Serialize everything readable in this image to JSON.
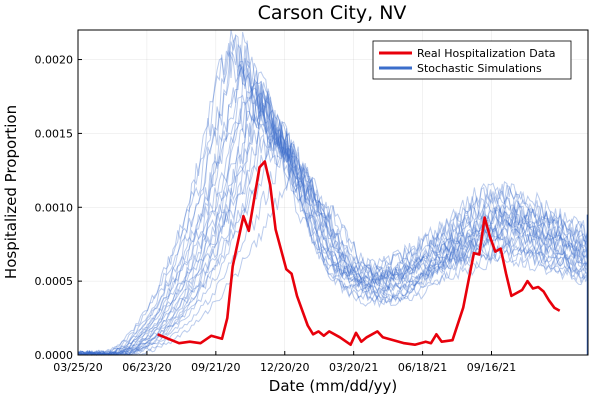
{
  "chart_data": {
    "type": "line",
    "title": "Carson City, NV",
    "xlabel": "Date (mm/dd/yy)",
    "ylabel": "Hospitalized Proportion",
    "x_axis": {
      "unit": "date",
      "range": [
        "03/25/20",
        "01/20/22"
      ],
      "ticks": [
        {
          "date": "03/25/20",
          "label": "03/25/20"
        },
        {
          "date": "06/23/20",
          "label": "06/23/20"
        },
        {
          "date": "09/21/20",
          "label": "09/21/20"
        },
        {
          "date": "12/20/20",
          "label": "12/20/20"
        },
        {
          "date": "03/20/21",
          "label": "03/20/21"
        },
        {
          "date": "06/18/21",
          "label": "06/18/21"
        },
        {
          "date": "09/16/21",
          "label": "09/16/21"
        }
      ]
    },
    "y_axis": {
      "range": [
        0,
        0.0022
      ],
      "ticks": [
        {
          "value": 0,
          "label": "0.0000"
        },
        {
          "value": 0.0005,
          "label": "0.0005"
        },
        {
          "value": 0.001,
          "label": "0.0010"
        },
        {
          "value": 0.0015,
          "label": "0.0015"
        },
        {
          "value": 0.002,
          "label": "0.0020"
        }
      ]
    },
    "grid": true,
    "legend": {
      "placement": "top-right",
      "entries": [
        {
          "label": "Real Hospitalization Data",
          "color": "#e8000b"
        },
        {
          "label": "Stochastic Simulations",
          "color": "#3b6ecb"
        }
      ]
    },
    "series": [
      {
        "name": "Real Hospitalization Data",
        "color": "#e8000b",
        "points": [
          [
            "07/07/20",
            0.00014
          ],
          [
            "07/21/20",
            0.00011
          ],
          [
            "08/04/20",
            8e-05
          ],
          [
            "08/18/20",
            9e-05
          ],
          [
            "09/01/20",
            8e-05
          ],
          [
            "09/15/20",
            0.00013
          ],
          [
            "09/29/20",
            0.00011
          ],
          [
            "10/06/20",
            0.00025
          ],
          [
            "10/13/20",
            0.0006
          ],
          [
            "10/27/20",
            0.00094
          ],
          [
            "11/03/20",
            0.00084
          ],
          [
            "11/17/20",
            0.00127
          ],
          [
            "11/24/20",
            0.00131
          ],
          [
            "12/01/20",
            0.00115
          ],
          [
            "12/08/20",
            0.00085
          ],
          [
            "12/22/20",
            0.00058
          ],
          [
            "12/29/20",
            0.00055
          ],
          [
            "01/05/21",
            0.0004
          ],
          [
            "01/19/21",
            0.0002
          ],
          [
            "01/26/21",
            0.00014
          ],
          [
            "02/02/21",
            0.00016
          ],
          [
            "02/09/21",
            0.00013
          ],
          [
            "02/16/21",
            0.00016
          ],
          [
            "03/02/21",
            0.00012
          ],
          [
            "03/16/21",
            7e-05
          ],
          [
            "03/23/21",
            0.00015
          ],
          [
            "03/30/21",
            9e-05
          ],
          [
            "04/06/21",
            0.00012
          ],
          [
            "04/20/21",
            0.00016
          ],
          [
            "04/27/21",
            0.00012
          ],
          [
            "05/11/21",
            0.0001
          ],
          [
            "05/25/21",
            8e-05
          ],
          [
            "06/08/21",
            7e-05
          ],
          [
            "06/22/21",
            9e-05
          ],
          [
            "06/29/21",
            8e-05
          ],
          [
            "07/06/21",
            0.00014
          ],
          [
            "07/13/21",
            9e-05
          ],
          [
            "07/27/21",
            0.0001
          ],
          [
            "08/10/21",
            0.00032
          ],
          [
            "08/24/21",
            0.00069
          ],
          [
            "08/31/21",
            0.00068
          ],
          [
            "09/07/21",
            0.00093
          ],
          [
            "09/14/21",
            0.0008
          ],
          [
            "09/21/21",
            0.0007
          ],
          [
            "09/28/21",
            0.00072
          ],
          [
            "10/05/21",
            0.00055
          ],
          [
            "10/12/21",
            0.0004
          ],
          [
            "10/26/21",
            0.00044
          ],
          [
            "11/02/21",
            0.0005
          ],
          [
            "11/09/21",
            0.00045
          ],
          [
            "11/16/21",
            0.00046
          ],
          [
            "11/23/21",
            0.00043
          ],
          [
            "11/30/21",
            0.00037
          ],
          [
            "12/07/21",
            0.00032
          ],
          [
            "12/14/21",
            0.0003
          ]
        ]
      },
      {
        "name": "Stochastic Simulations",
        "color": "#3b6ecb",
        "runs": [
          {
            "start": "04/16/20",
            "peak_date": "10/14/20",
            "peak": 0.00205,
            "plateau_start": "03/15/21",
            "plateau": 0.00045,
            "second_peak_date": "10/02/21",
            "second_peak": 0.001
          },
          {
            "start": "04/20/20",
            "peak_date": "10/23/20",
            "peak": 0.0019,
            "plateau_start": "03/29/21",
            "plateau": 0.0005,
            "second_peak_date": "10/12/21",
            "second_peak": 0.00085
          },
          {
            "start": "04/25/20",
            "peak_date": "11/02/20",
            "peak": 0.00175,
            "plateau_start": "04/08/21",
            "plateau": 0.0004,
            "second_peak_date": "09/22/21",
            "second_peak": 0.0011
          },
          {
            "start": "04/30/20",
            "peak_date": "11/12/20",
            "peak": 0.0016,
            "plateau_start": "04/18/21",
            "plateau": 0.00055,
            "second_peak_date": "10/22/21",
            "second_peak": 0.00075
          },
          {
            "start": "05/05/20",
            "peak_date": "11/22/20",
            "peak": 0.0015,
            "plateau_start": "04/28/21",
            "plateau": 0.00035,
            "second_peak_date": "10/12/21",
            "second_peak": 0.00095
          },
          {
            "start": "04/13/20",
            "peak_date": "10/09/20",
            "peak": 0.002,
            "plateau_start": "03/10/21",
            "plateau": 0.0006,
            "second_peak_date": "11/01/21",
            "second_peak": 0.0008
          },
          {
            "start": "04/18/20",
            "peak_date": "10/19/20",
            "peak": 0.00185,
            "plateau_start": "03/20/21",
            "plateau": 0.00042,
            "second_peak_date": "10/07/21",
            "second_peak": 0.0009
          },
          {
            "start": "04/23/20",
            "peak_date": "10/29/20",
            "peak": 0.0017,
            "plateau_start": "03/30/21",
            "plateau": 0.00048,
            "second_peak_date": "10/17/21",
            "second_peak": 0.0007
          },
          {
            "start": "05/10/20",
            "peak_date": "12/02/20",
            "peak": 0.0014,
            "plateau_start": "05/08/21",
            "plateau": 0.00038,
            "second_peak_date": "09/27/21",
            "second_peak": 0.00105
          },
          {
            "start": "04/28/20",
            "peak_date": "11/07/20",
            "peak": 0.00165,
            "plateau_start": "04/13/21",
            "plateau": 0.00052,
            "second_peak_date": "10/27/21",
            "second_peak": 0.00088
          },
          {
            "start": "05/03/20",
            "peak_date": "11/17/20",
            "peak": 0.00155,
            "plateau_start": "04/23/21",
            "plateau": 0.00044,
            "second_peak_date": "10/12/21",
            "second_peak": 0.00078
          },
          {
            "start": "04/08/20",
            "peak_date": "09/29/20",
            "peak": 0.00195,
            "plateau_start": "03/05/21",
            "plateau": 0.00058,
            "second_peak_date": "10/17/21",
            "second_peak": 0.00095
          },
          {
            "start": "05/13/20",
            "peak_date": "12/12/20",
            "peak": 0.0013,
            "plateau_start": "05/18/21",
            "plateau": 0.00046,
            "second_peak_date": "10/22/21",
            "second_peak": 0.00065
          },
          {
            "start": "04/21/20",
            "peak_date": "10/24/20",
            "peak": 0.0018,
            "plateau_start": "03/26/21",
            "plateau": 0.0005,
            "second_peak_date": "10/07/21",
            "second_peak": 0.00112
          },
          {
            "start": "04/26/20",
            "peak_date": "11/03/20",
            "peak": 0.00168,
            "plateau_start": "04/05/21",
            "plateau": 0.00036,
            "second_peak_date": "10/02/21",
            "second_peak": 0.00082
          },
          {
            "start": "05/01/20",
            "peak_date": "11/13/20",
            "peak": 0.00158,
            "plateau_start": "04/15/21",
            "plateau": 0.00056,
            "second_peak_date": "10/27/21",
            "second_peak": 0.00072
          },
          {
            "start": "05/08/20",
            "peak_date": "11/27/20",
            "peak": 0.00145,
            "plateau_start": "05/03/21",
            "plateau": 0.00041,
            "second_peak_date": "10/17/21",
            "second_peak": 0.00098
          },
          {
            "start": "04/16/20",
            "peak_date": "10/14/20",
            "peak": 0.00198,
            "plateau_start": "03/15/21",
            "plateau": 0.00047,
            "second_peak_date": "10/12/21",
            "second_peak": 0.00087
          },
          {
            "start": "04/23/20",
            "peak_date": "10/29/20",
            "peak": 0.00178,
            "plateau_start": "03/30/21",
            "plateau": 0.00053,
            "second_peak_date": "09/27/21",
            "second_peak": 0.00076
          },
          {
            "start": "05/18/20",
            "peak_date": "12/22/20",
            "peak": 0.0012,
            "plateau_start": "05/28/21",
            "plateau": 0.00039,
            "second_peak_date": "10/22/21",
            "second_peak": 0.00092
          },
          {
            "start": "04/11/20",
            "peak_date": "10/04/20",
            "peak": 0.0021,
            "plateau_start": "03/08/21",
            "plateau": 0.00054,
            "second_peak_date": "10/07/21",
            "second_peak": 0.00102
          },
          {
            "start": "04/28/20",
            "peak_date": "11/07/20",
            "peak": 0.00162,
            "plateau_start": "04/10/21",
            "plateau": 0.00049,
            "second_peak_date": "11/01/21",
            "second_peak": 0.00068
          },
          {
            "start": "05/03/20",
            "peak_date": "11/17/20",
            "peak": 0.00152,
            "plateau_start": "04/20/21",
            "plateau": 0.00043,
            "second_peak_date": "10/17/21",
            "second_peak": 0.00084
          },
          {
            "start": "04/18/20",
            "peak_date": "10/19/20",
            "peak": 0.00188,
            "plateau_start": "03/22/21",
            "plateau": 0.00051,
            "second_peak_date": "10/12/21",
            "second_peak": 0.00094
          },
          {
            "start": "05/06/20",
            "peak_date": "11/22/20",
            "peak": 0.00142,
            "plateau_start": "04/28/21",
            "plateau": 0.00037,
            "second_peak_date": "10/02/21",
            "second_peak": 0.00108
          }
        ]
      }
    ]
  }
}
